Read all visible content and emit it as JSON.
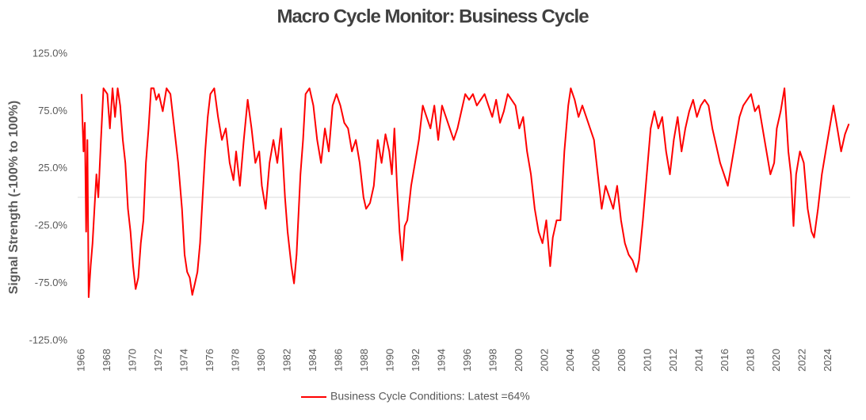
{
  "chart_data": {
    "type": "line",
    "title": "Macro Cycle Monitor: Business Cycle",
    "y_label": "Signal Strength (-100% to 100%)",
    "x": [
      1966.0,
      1966.15,
      1966.25,
      1966.35,
      1966.45,
      1966.55,
      1966.7,
      1966.85,
      1967.0,
      1967.15,
      1967.3,
      1967.5,
      1967.7,
      1968.0,
      1968.2,
      1968.4,
      1968.6,
      1968.8,
      1969.0,
      1969.2,
      1969.4,
      1969.6,
      1969.8,
      1970.0,
      1970.2,
      1970.4,
      1970.6,
      1970.8,
      1971.0,
      1971.2,
      1971.4,
      1971.6,
      1971.8,
      1972.0,
      1972.3,
      1972.6,
      1972.9,
      1973.2,
      1973.5,
      1973.8,
      1974.0,
      1974.2,
      1974.4,
      1974.6,
      1974.8,
      1975.0,
      1975.2,
      1975.4,
      1975.6,
      1975.8,
      1976.0,
      1976.3,
      1976.6,
      1976.9,
      1977.2,
      1977.5,
      1977.8,
      1978.0,
      1978.3,
      1978.6,
      1978.9,
      1979.2,
      1979.5,
      1979.8,
      1980.0,
      1980.3,
      1980.6,
      1980.9,
      1981.2,
      1981.5,
      1981.8,
      1982.0,
      1982.3,
      1982.5,
      1982.7,
      1983.0,
      1983.2,
      1983.4,
      1983.7,
      1984.0,
      1984.3,
      1984.6,
      1984.9,
      1985.2,
      1985.5,
      1985.8,
      1986.1,
      1986.4,
      1986.7,
      1987.0,
      1987.3,
      1987.6,
      1987.9,
      1988.1,
      1988.4,
      1988.7,
      1989.0,
      1989.3,
      1989.6,
      1989.9,
      1990.1,
      1990.3,
      1990.5,
      1990.7,
      1990.9,
      1991.1,
      1991.3,
      1991.6,
      1991.9,
      1992.2,
      1992.5,
      1992.8,
      1993.1,
      1993.4,
      1993.7,
      1994.0,
      1994.3,
      1994.6,
      1994.9,
      1995.2,
      1995.5,
      1995.8,
      1996.1,
      1996.4,
      1996.7,
      1997.0,
      1997.3,
      1997.6,
      1997.9,
      1998.2,
      1998.5,
      1998.8,
      1999.1,
      1999.4,
      1999.7,
      2000.0,
      2000.3,
      2000.6,
      2000.9,
      2001.2,
      2001.5,
      2001.8,
      2002.1,
      2002.4,
      2002.6,
      2002.9,
      2003.2,
      2003.5,
      2003.8,
      2004.0,
      2004.3,
      2004.6,
      2004.9,
      2005.2,
      2005.5,
      2005.8,
      2006.1,
      2006.4,
      2006.7,
      2007.0,
      2007.3,
      2007.6,
      2007.9,
      2008.2,
      2008.5,
      2008.8,
      2009.1,
      2009.3,
      2009.6,
      2009.9,
      2010.2,
      2010.5,
      2010.8,
      2011.1,
      2011.4,
      2011.7,
      2012.0,
      2012.3,
      2012.6,
      2012.9,
      2013.2,
      2013.5,
      2013.8,
      2014.1,
      2014.4,
      2014.7,
      2015.0,
      2015.3,
      2015.6,
      2015.9,
      2016.2,
      2016.5,
      2016.8,
      2017.1,
      2017.4,
      2017.7,
      2018.0,
      2018.3,
      2018.6,
      2018.9,
      2019.2,
      2019.5,
      2019.8,
      2020.0,
      2020.3,
      2020.6,
      2020.9,
      2021.1,
      2021.3,
      2021.5,
      2021.8,
      2022.1,
      2022.4,
      2022.7,
      2022.9,
      2023.2,
      2023.5,
      2023.8,
      2024.1,
      2024.4,
      2024.7,
      2025.0,
      2025.3,
      2025.6
    ],
    "series": [
      {
        "name": "Business Cycle Conditions: Latest =64%",
        "color": "#ff0000",
        "values": [
          90,
          40,
          65,
          -30,
          50,
          -87,
          -60,
          -40,
          -10,
          20,
          0,
          50,
          95,
          90,
          60,
          95,
          70,
          95,
          80,
          50,
          30,
          -10,
          -30,
          -60,
          -80,
          -70,
          -40,
          -20,
          30,
          60,
          95,
          95,
          85,
          90,
          75,
          95,
          90,
          60,
          30,
          -10,
          -50,
          -65,
          -70,
          -85,
          -75,
          -65,
          -40,
          0,
          40,
          70,
          90,
          95,
          70,
          50,
          60,
          30,
          15,
          40,
          10,
          50,
          85,
          60,
          30,
          40,
          10,
          -10,
          30,
          50,
          30,
          60,
          0,
          -30,
          -60,
          -75,
          -50,
          20,
          50,
          90,
          95,
          80,
          50,
          30,
          60,
          40,
          80,
          90,
          80,
          65,
          60,
          40,
          50,
          30,
          0,
          -10,
          -5,
          10,
          50,
          30,
          55,
          40,
          20,
          60,
          10,
          -30,
          -55,
          -25,
          -20,
          10,
          30,
          50,
          80,
          70,
          60,
          80,
          50,
          80,
          70,
          60,
          50,
          60,
          75,
          90,
          85,
          90,
          80,
          85,
          90,
          80,
          70,
          85,
          65,
          75,
          90,
          85,
          80,
          60,
          70,
          40,
          20,
          -10,
          -30,
          -40,
          -20,
          -60,
          -35,
          -20,
          -20,
          40,
          80,
          95,
          85,
          70,
          80,
          70,
          60,
          50,
          20,
          -10,
          10,
          0,
          -10,
          10,
          -20,
          -40,
          -50,
          -55,
          -65,
          -55,
          -20,
          20,
          60,
          75,
          60,
          70,
          40,
          20,
          50,
          70,
          40,
          60,
          75,
          85,
          70,
          80,
          85,
          80,
          60,
          45,
          30,
          20,
          10,
          30,
          50,
          70,
          80,
          85,
          90,
          75,
          80,
          60,
          40,
          20,
          30,
          60,
          75,
          95,
          40,
          20,
          -25,
          20,
          40,
          30,
          -10,
          -30,
          -35,
          -10,
          20,
          40,
          60,
          80,
          60,
          40,
          55,
          64
        ]
      }
    ],
    "xlim": [
      1966,
      2025.7
    ],
    "xticks": [
      1966,
      1968,
      1970,
      1972,
      1974,
      1976,
      1978,
      1980,
      1982,
      1984,
      1986,
      1988,
      1990,
      1992,
      1994,
      1996,
      1998,
      2000,
      2002,
      2004,
      2006,
      2008,
      2010,
      2012,
      2014,
      2016,
      2018,
      2020,
      2022,
      2024
    ],
    "ylim": [
      -125,
      125
    ],
    "yticks": [
      {
        "value": -125,
        "label": "-125.0%"
      },
      {
        "value": -75,
        "label": "-75.0%"
      },
      {
        "value": -25,
        "label": "-25.0%"
      },
      {
        "value": 25,
        "label": "25.0%"
      },
      {
        "value": 75,
        "label": "75.0%"
      },
      {
        "value": 125,
        "label": "125.0%"
      }
    ],
    "legend": "bottom"
  }
}
